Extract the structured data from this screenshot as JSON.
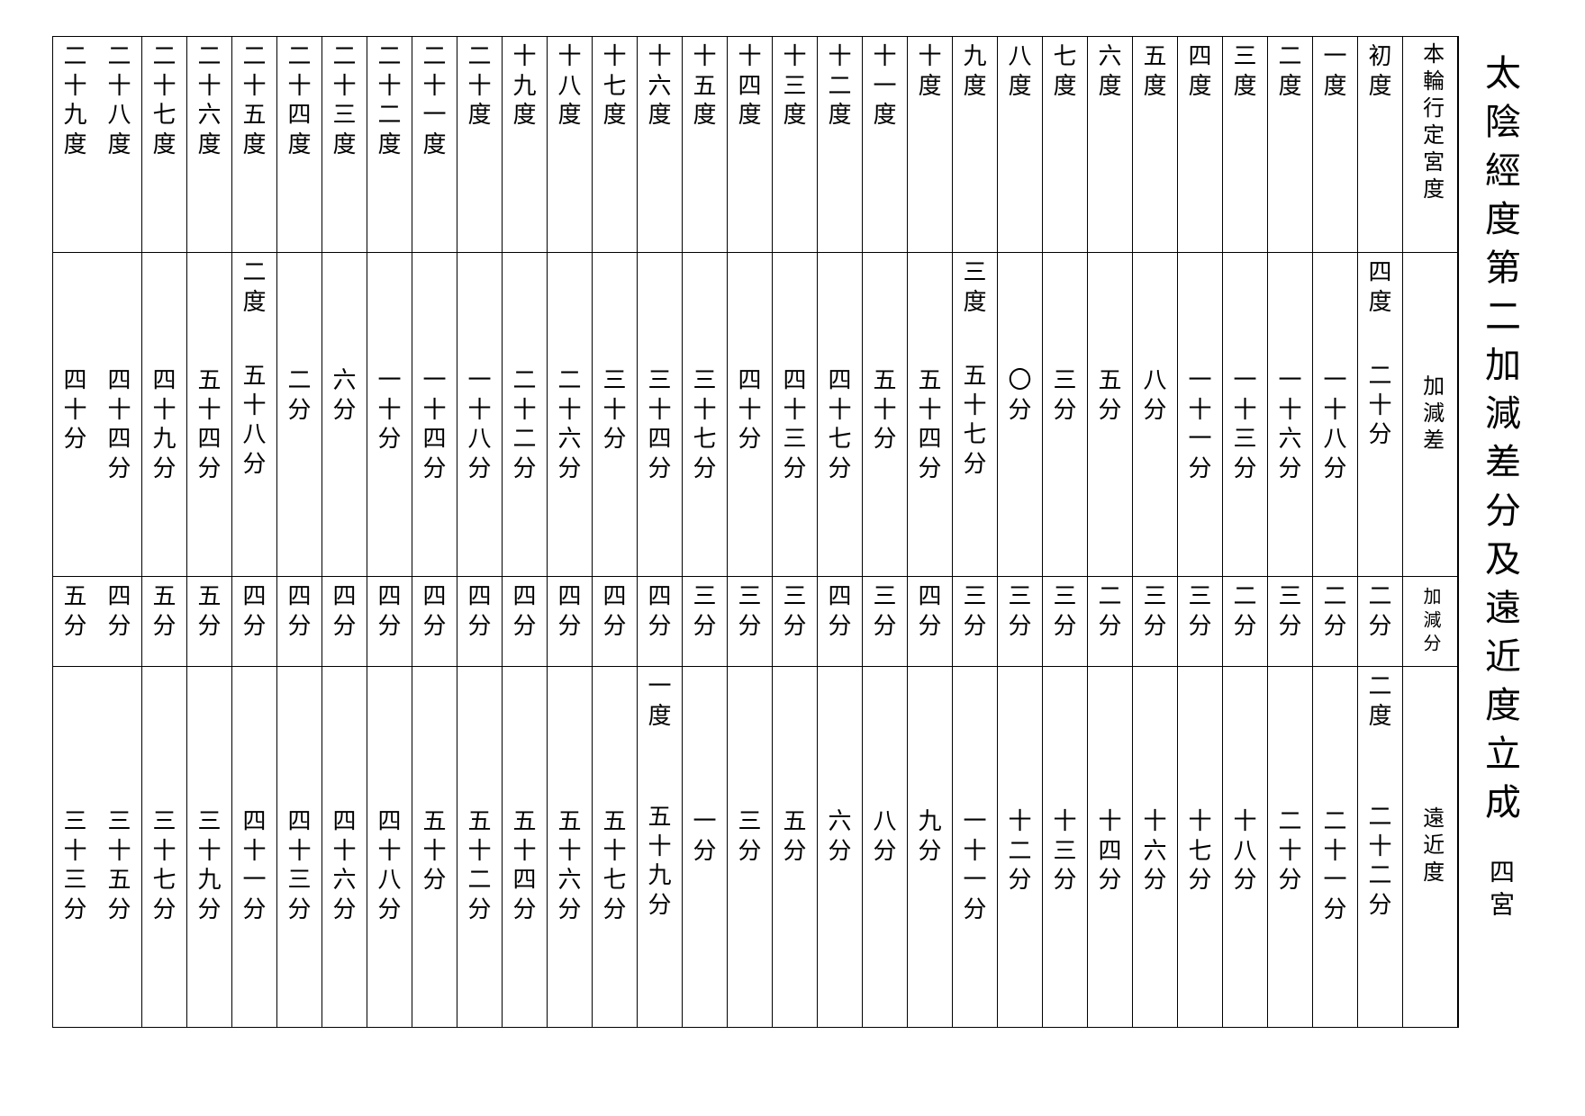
{
  "title": "太陰經度第二加減差分及遠近度立成",
  "subtitle": "四宮",
  "headers": {
    "row1": "本輪行定宮度",
    "row2": "加減差",
    "row3": "加減分",
    "row4": "遠近度"
  },
  "columns": [
    {
      "r1": "初度",
      "r2p": "四度",
      "r2": "二十分",
      "r3": "二分",
      "r4p": "二度",
      "r4": "二十二分"
    },
    {
      "r1": "一度",
      "r2p": "",
      "r2": "一十八分",
      "r3": "二分",
      "r4p": "",
      "r4": "二十一分"
    },
    {
      "r1": "二度",
      "r2p": "",
      "r2": "一十六分",
      "r3": "三分",
      "r4p": "",
      "r4": "二十分"
    },
    {
      "r1": "三度",
      "r2p": "",
      "r2": "一十三分",
      "r3": "二分",
      "r4p": "",
      "r4": "十八分"
    },
    {
      "r1": "四度",
      "r2p": "",
      "r2": "一十一分",
      "r3": "三分",
      "r4p": "",
      "r4": "十七分"
    },
    {
      "r1": "五度",
      "r2p": "",
      "r2": "八分",
      "r3": "三分",
      "r4p": "",
      "r4": "十六分"
    },
    {
      "r1": "六度",
      "r2p": "",
      "r2": "五分",
      "r3": "二分",
      "r4p": "",
      "r4": "十四分"
    },
    {
      "r1": "七度",
      "r2p": "",
      "r2": "三分",
      "r3": "三分",
      "r4p": "",
      "r4": "十三分"
    },
    {
      "r1": "八度",
      "r2p": "",
      "r2": "〇分",
      "r3": "三分",
      "r4p": "",
      "r4": "十二分"
    },
    {
      "r1": "九度",
      "r2p": "三度",
      "r2": "五十七分",
      "r3": "三分",
      "r4p": "",
      "r4": "一十一分"
    },
    {
      "r1": "十度",
      "r2p": "",
      "r2": "五十四分",
      "r3": "四分",
      "r4p": "",
      "r4": "九分"
    },
    {
      "r1": "十一度",
      "r2p": "",
      "r2": "五十分",
      "r3": "三分",
      "r4p": "",
      "r4": "八分"
    },
    {
      "r1": "十二度",
      "r2p": "",
      "r2": "四十七分",
      "r3": "四分",
      "r4p": "",
      "r4": "六分"
    },
    {
      "r1": "十三度",
      "r2p": "",
      "r2": "四十三分",
      "r3": "三分",
      "r4p": "",
      "r4": "五分"
    },
    {
      "r1": "十四度",
      "r2p": "",
      "r2": "四十分",
      "r3": "三分",
      "r4p": "",
      "r4": "三分"
    },
    {
      "r1": "十五度",
      "r2p": "",
      "r2": "三十七分",
      "r3": "三分",
      "r4p": "",
      "r4": "一分"
    },
    {
      "r1": "十六度",
      "r2p": "",
      "r2": "三十四分",
      "r3": "四分",
      "r4p": "一度",
      "r4": "五十九分"
    },
    {
      "r1": "十七度",
      "r2p": "",
      "r2": "三十分",
      "r3": "四分",
      "r4p": "",
      "r4": "五十七分"
    },
    {
      "r1": "十八度",
      "r2p": "",
      "r2": "二十六分",
      "r3": "四分",
      "r4p": "",
      "r4": "五十六分"
    },
    {
      "r1": "十九度",
      "r2p": "",
      "r2": "二十二分",
      "r3": "四分",
      "r4p": "",
      "r4": "五十四分"
    },
    {
      "r1": "二十度",
      "r2p": "",
      "r2": "一十八分",
      "r3": "四分",
      "r4p": "",
      "r4": "五十二分"
    },
    {
      "r1": "二十一度",
      "r2p": "",
      "r2": "一十四分",
      "r3": "四分",
      "r4p": "",
      "r4": "五十分"
    },
    {
      "r1": "二十二度",
      "r2p": "",
      "r2": "一十分",
      "r3": "四分",
      "r4p": "",
      "r4": "四十八分"
    },
    {
      "r1": "二十三度",
      "r2p": "",
      "r2": "六分",
      "r3": "四分",
      "r4p": "",
      "r4": "四十六分"
    },
    {
      "r1": "二十四度",
      "r2p": "",
      "r2": "二分",
      "r3": "四分",
      "r4p": "",
      "r4": "四十三分"
    },
    {
      "r1": "二十五度",
      "r2p": "二度",
      "r2": "五十八分",
      "r3": "四分",
      "r4p": "",
      "r4": "四十一分"
    },
    {
      "r1": "二十六度",
      "r2p": "",
      "r2": "五十四分",
      "r3": "五分",
      "r4p": "",
      "r4": "三十九分"
    },
    {
      "r1": "二十七度",
      "r2p": "",
      "r2": "四十九分",
      "r3": "五分",
      "r4p": "",
      "r4": "三十七分"
    },
    {
      "r1": "二十八度",
      "r2p": "",
      "r2": "四十四分",
      "r3": "四分",
      "r4p": "",
      "r4": "三十五分"
    },
    {
      "r1": "二十九度",
      "r2p": "",
      "r2": "四十分",
      "r3": "五分",
      "r4p": "",
      "r4": "三十三分"
    }
  ],
  "colors": {
    "background": "#ffffff",
    "text": "#000000",
    "border": "#000000"
  },
  "fonts": {
    "title_size": 40,
    "body_size": 26,
    "header_label_size": 24
  }
}
